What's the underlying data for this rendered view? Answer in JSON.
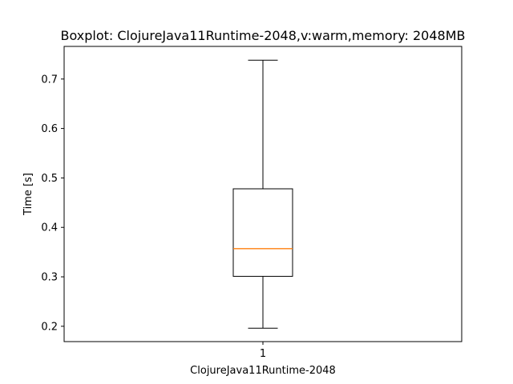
{
  "chart_data": {
    "type": "boxplot",
    "title": "Boxplot: ClojureJava11Runtime-2048,v:warm,memory: 2048MB",
    "xlabel": "ClojureJava11Runtime-2048",
    "ylabel": "Time [s]",
    "x_ticks": [
      "1"
    ],
    "y_ticks": [
      0.2,
      0.3,
      0.4,
      0.5,
      0.6,
      0.7
    ],
    "ylim": [
      0.169,
      0.766
    ],
    "grid": false,
    "boxes": [
      {
        "category": "1",
        "whisker_low": 0.196,
        "q1": 0.301,
        "median": 0.357,
        "q3": 0.478,
        "whisker_high": 0.738
      }
    ],
    "colors": {
      "box": "#000000",
      "median": "#ff7f0e",
      "background": "#ffffff"
    }
  }
}
